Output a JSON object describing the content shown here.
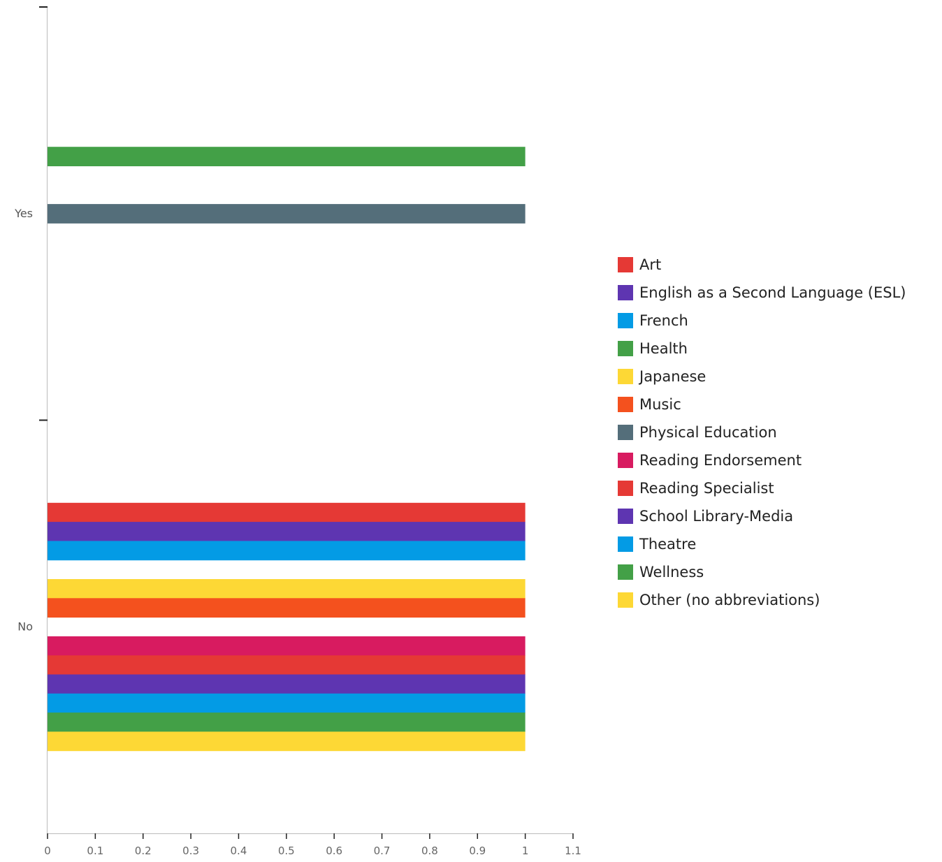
{
  "chart_data": {
    "type": "bar",
    "orientation": "horizontal",
    "title": "",
    "xlabel": "",
    "ylabel": "",
    "xlim": [
      0,
      1.1
    ],
    "x_ticks": [
      "0",
      "0.1",
      "0.2",
      "0.3",
      "0.4",
      "0.5",
      "0.6",
      "0.7",
      "0.8",
      "0.9",
      "1",
      "1.1"
    ],
    "categories": [
      "Yes",
      "No"
    ],
    "grid": false,
    "legend_position": "right",
    "series": [
      {
        "name": "Art",
        "color": "#e53935",
        "values": [
          0,
          1
        ]
      },
      {
        "name": "English as a Second Language (ESL)",
        "color": "#5e35b1",
        "values": [
          0,
          1
        ]
      },
      {
        "name": "French",
        "color": "#039be5",
        "values": [
          0,
          1
        ]
      },
      {
        "name": "Health",
        "color": "#43a047",
        "values": [
          1,
          0
        ]
      },
      {
        "name": "Japanese",
        "color": "#fdd835",
        "values": [
          0,
          1
        ]
      },
      {
        "name": "Music",
        "color": "#f4511e",
        "values": [
          0,
          1
        ]
      },
      {
        "name": "Physical Education",
        "color": "#546e7a",
        "values": [
          1,
          0
        ]
      },
      {
        "name": "Reading Endorsement",
        "color": "#d81b60",
        "values": [
          0,
          1
        ]
      },
      {
        "name": "Reading Specialist",
        "color": "#e53935",
        "values": [
          0,
          1
        ]
      },
      {
        "name": "School Library-Media",
        "color": "#5e35b1",
        "values": [
          0,
          1
        ]
      },
      {
        "name": "Theatre",
        "color": "#039be5",
        "values": [
          0,
          1
        ]
      },
      {
        "name": "Wellness",
        "color": "#43a047",
        "values": [
          0,
          1
        ]
      },
      {
        "name": "Other (no abbreviations)",
        "color": "#fdd835",
        "values": [
          0,
          1
        ]
      }
    ]
  }
}
